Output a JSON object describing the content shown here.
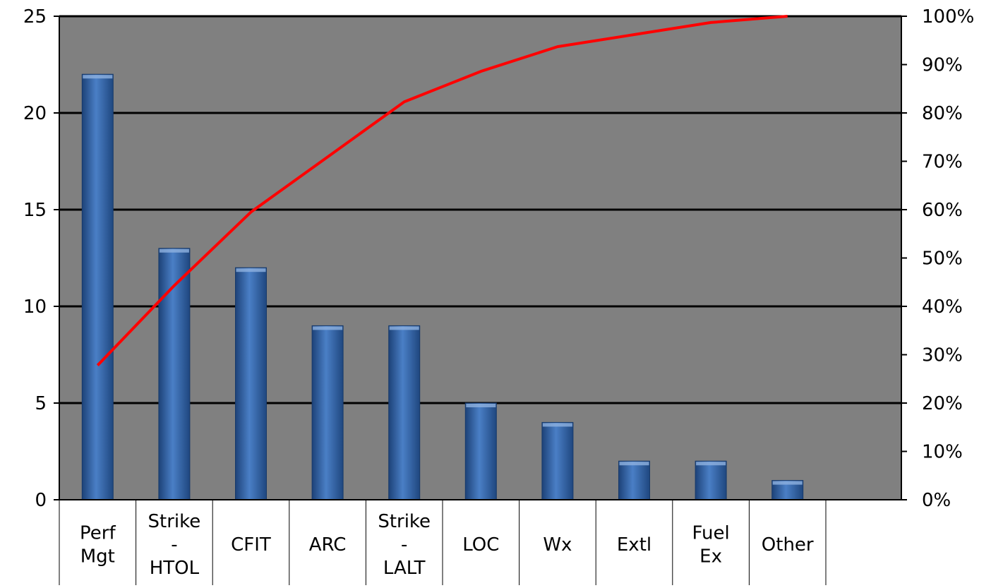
{
  "chart_data": {
    "type": "bar",
    "categories": [
      [
        "Perf",
        "Mgt"
      ],
      [
        "Strike",
        "-",
        "HTOL"
      ],
      [
        "CFIT"
      ],
      [
        "ARC"
      ],
      [
        "Strike",
        "-",
        "LALT"
      ],
      [
        "LOC"
      ],
      [
        "Wx"
      ],
      [
        "Extl"
      ],
      [
        "Fuel",
        "Ex"
      ],
      [
        "Other"
      ]
    ],
    "series": [
      {
        "type": "bar",
        "axis": "left",
        "values": [
          22,
          13,
          12,
          9,
          9,
          5,
          4,
          2,
          2,
          1
        ]
      },
      {
        "type": "line",
        "axis": "right",
        "values": [
          27.8,
          44.3,
          59.5,
          70.9,
          82.3,
          88.6,
          93.7,
          96.2,
          98.7,
          100
        ]
      }
    ],
    "y_left": {
      "min": 0,
      "max": 25,
      "ticks": [
        0,
        5,
        10,
        15,
        20,
        25
      ],
      "labels": [
        "0",
        "5",
        "10",
        "15",
        "20",
        "25"
      ]
    },
    "y_right": {
      "min": 0,
      "max": 100,
      "ticks": [
        0,
        10,
        20,
        30,
        40,
        50,
        60,
        70,
        80,
        90,
        100
      ],
      "labels": [
        "0%",
        "10%",
        "20%",
        "30%",
        "40%",
        "50%",
        "60%",
        "70%",
        "80%",
        "90%",
        "100%"
      ]
    },
    "gridlines": "major (left axis)",
    "legend": "none",
    "colors": {
      "plot_background": "#808080",
      "bar": "#2f5ea2",
      "line": "#ff0000",
      "grid": "#000000"
    }
  }
}
